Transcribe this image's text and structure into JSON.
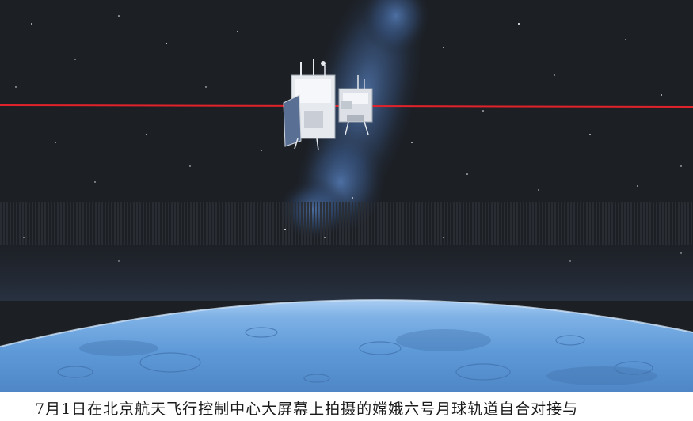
{
  "photo": {
    "subject": "spacecraft-over-moon",
    "colors": {
      "space": "#1c1f24",
      "milky_way": "#4a78b8",
      "moon_surface": "#5f9ad8",
      "moon_highlight": "#a9cdf2",
      "tracking_line": "#e0232a",
      "spacecraft_body": "#e6e9ee"
    }
  },
  "caption": {
    "text": "7月1日在北京航天飞行控制中心大屏幕上拍摄的嫦娥六号月球轨道自合对接与"
  }
}
